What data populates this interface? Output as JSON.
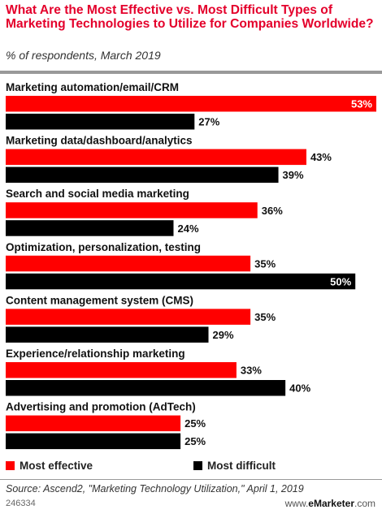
{
  "header": {
    "title": "What Are the Most Effective vs. Most Difficult Types of Marketing Technologies to Utilize for Companies Worldwide?",
    "subtitle": "% of respondents, March 2019"
  },
  "chart_data": {
    "type": "bar",
    "orientation": "horizontal",
    "categories": [
      "Marketing automation/email/CRM",
      "Marketing data/dashboard/analytics",
      "Search and social media marketing",
      "Optimization, personalization, testing",
      "Content management system (CMS)",
      "Experience/relationship marketing",
      "Advertising and promotion (AdTech)"
    ],
    "series": [
      {
        "name": "Most effective",
        "color": "#ff0000",
        "values": [
          53,
          43,
          36,
          35,
          35,
          33,
          25
        ]
      },
      {
        "name": "Most difficult",
        "color": "#000000",
        "values": [
          27,
          39,
          24,
          50,
          29,
          40,
          25
        ]
      }
    ],
    "value_suffix": "%",
    "xlim": [
      0,
      53
    ],
    "grid": false,
    "legend_position": "bottom"
  },
  "legend": {
    "effective_label": "Most effective",
    "difficult_label": "Most difficult"
  },
  "footer": {
    "source": "Source: Ascend2, \"Marketing Technology Utilization,\" April 1, 2019",
    "chart_id": "246334",
    "brand_prefix": "www.",
    "brand_name": "eMarketer",
    "brand_suffix": ".com"
  }
}
